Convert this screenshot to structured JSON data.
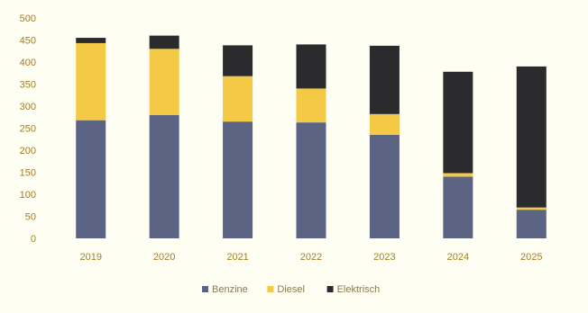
{
  "chart_data": {
    "type": "bar",
    "stacked": true,
    "title": "",
    "xlabel": "",
    "ylabel": "",
    "categories": [
      "2019",
      "2020",
      "2021",
      "2022",
      "2023",
      "2024",
      "2025"
    ],
    "ylim": [
      0,
      500
    ],
    "yticks": [
      0,
      50,
      100,
      150,
      200,
      250,
      300,
      350,
      400,
      450,
      500
    ],
    "grid": false,
    "legend_position": "bottom",
    "series": [
      {
        "name": "Benzine",
        "color": "#5b6483",
        "values": [
          268,
          280,
          265,
          263,
          235,
          140,
          65
        ]
      },
      {
        "name": "Diesel",
        "color": "#f3c945",
        "values": [
          175,
          150,
          103,
          77,
          47,
          8,
          5
        ]
      },
      {
        "name": "Elektrisch",
        "color": "#2b2b2d",
        "values": [
          12,
          30,
          70,
          100,
          155,
          230,
          320
        ]
      }
    ]
  }
}
